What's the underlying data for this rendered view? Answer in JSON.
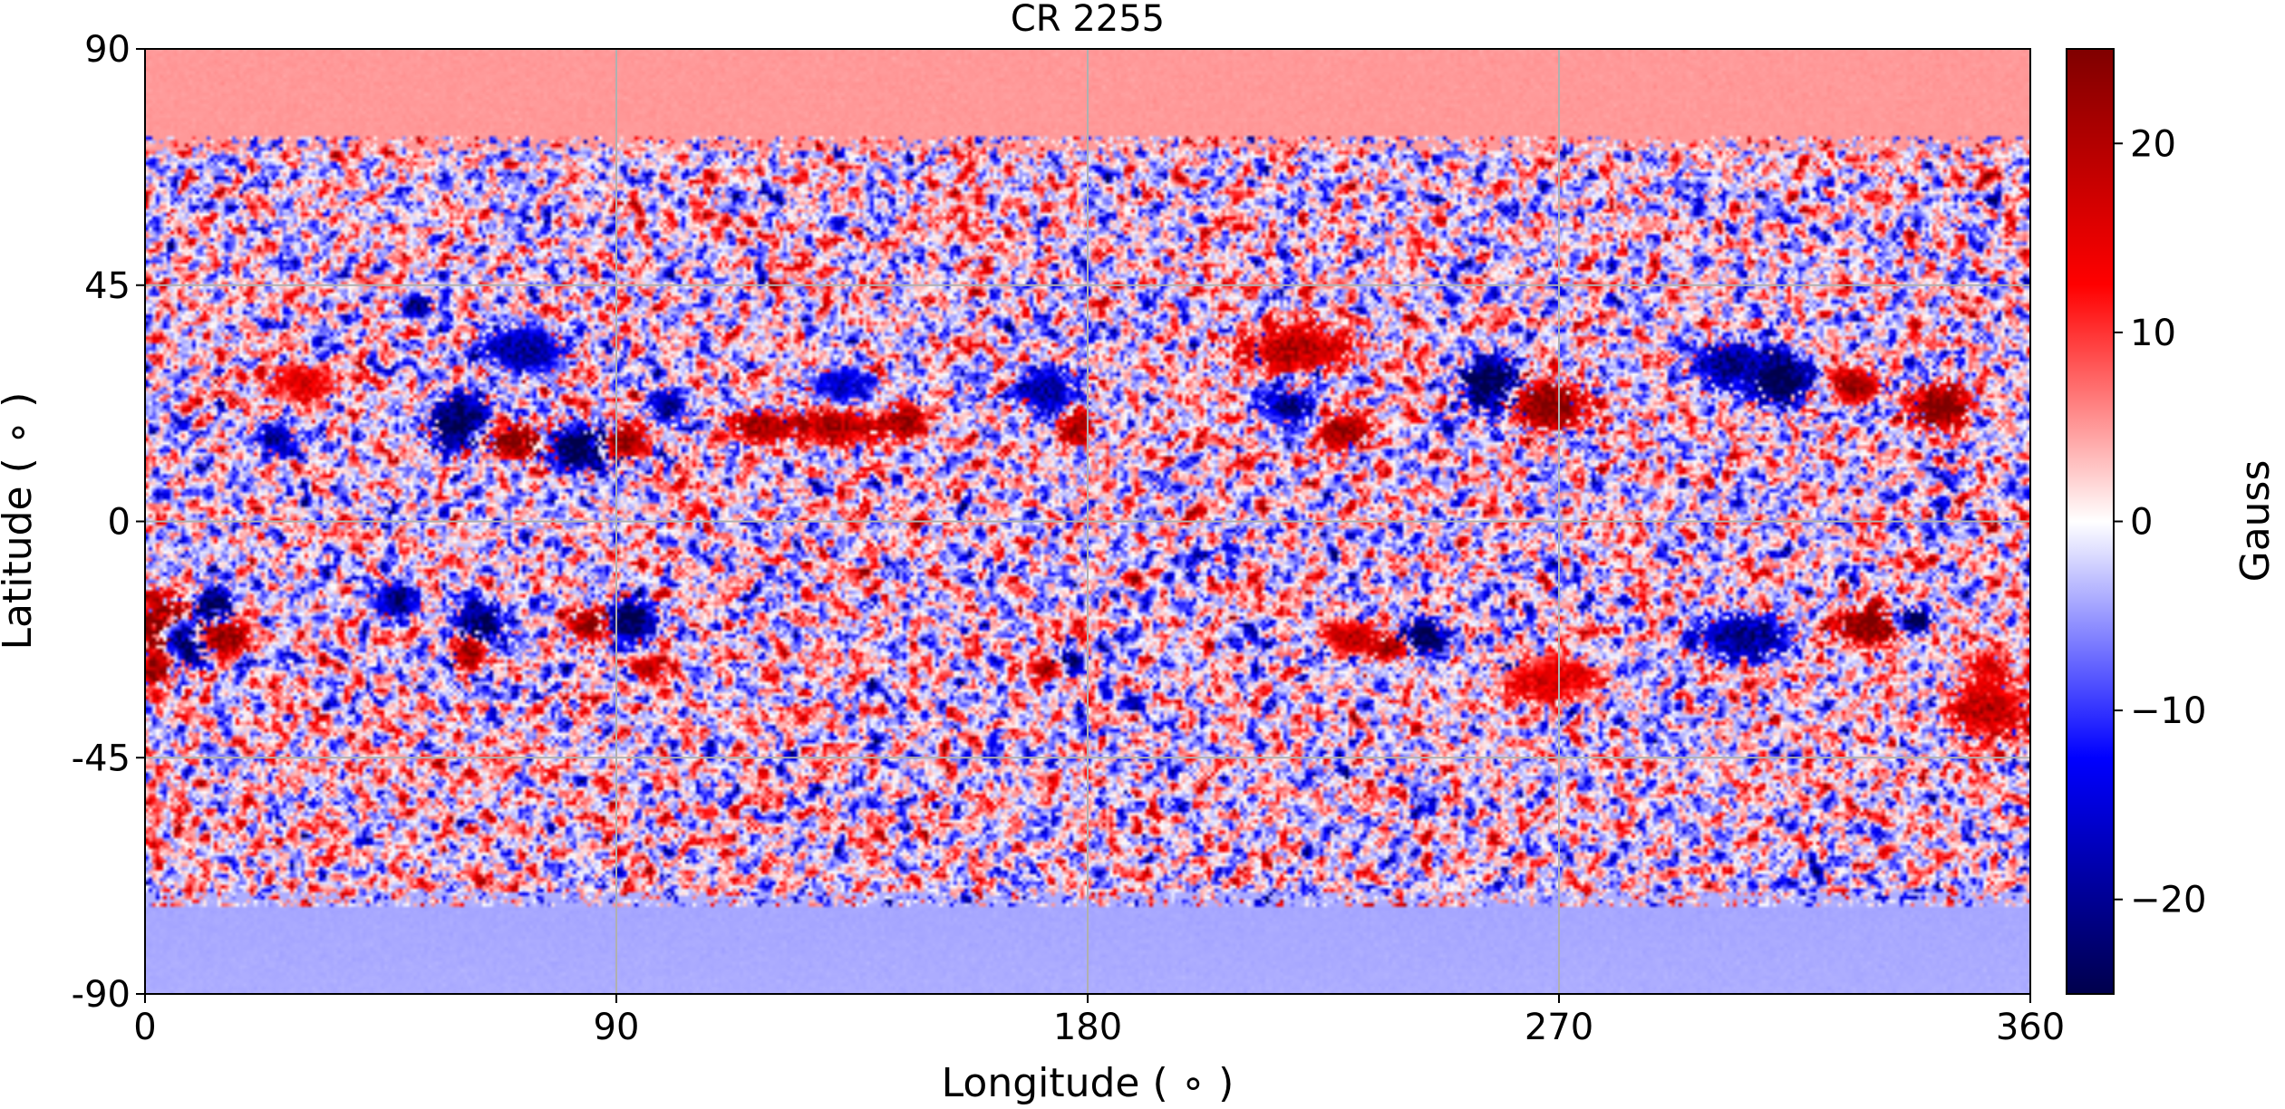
{
  "chart_data": {
    "type": "heatmap",
    "title": "CR 2255",
    "xlabel": "Longitude ($^\\circ$)",
    "ylabel": "Latitude ($^\\circ$)",
    "xlabel_display": "Longitude ( ∘ )",
    "ylabel_display": "Latitude ( ∘ )",
    "xlim": [
      0,
      360
    ],
    "ylim": [
      -90,
      90
    ],
    "xticks": [
      0,
      90,
      180,
      270,
      360
    ],
    "yticks": [
      90,
      45,
      0,
      -45,
      -90
    ],
    "xtick_labels": [
      "0",
      "90",
      "180",
      "270",
      "360"
    ],
    "ytick_labels": [
      "90",
      "45",
      "0",
      "-45",
      "-90"
    ],
    "grid": true,
    "colormap": "seismic",
    "colorbar": {
      "label": "Gauss",
      "range": [
        -25,
        25
      ],
      "ticks": [
        20,
        10,
        0,
        -10,
        -20
      ],
      "tick_labels": [
        "20",
        "10",
        "0",
        "−10",
        "−20"
      ],
      "colors": [
        "#00004c",
        "#0000ff",
        "#ffffff",
        "#ff0000",
        "#7f0000"
      ]
    },
    "polar_fill": {
      "north": {
        "lat_min": 72,
        "value": 5
      },
      "south": {
        "lat_max": -72,
        "value": -4
      }
    },
    "regions": [
      {
        "lon": 60,
        "lat": 19,
        "value": -25,
        "w": 5,
        "h": 5
      },
      {
        "lon": 72,
        "lat": 15,
        "value": 25,
        "w": 6,
        "h": 3
      },
      {
        "lon": 83,
        "lat": 14,
        "value": -25,
        "w": 6,
        "h": 4
      },
      {
        "lon": 92,
        "lat": 15,
        "value": 22,
        "w": 4,
        "h": 3
      },
      {
        "lon": 72,
        "lat": 33,
        "value": -18,
        "w": 8,
        "h": 4
      },
      {
        "lon": 100,
        "lat": 22,
        "value": -18,
        "w": 3,
        "h": 3
      },
      {
        "lon": 52,
        "lat": 41,
        "value": -20,
        "w": 3,
        "h": 2
      },
      {
        "lon": 25,
        "lat": 16,
        "value": -20,
        "w": 3,
        "h": 3
      },
      {
        "lon": 30,
        "lat": 26,
        "value": 15,
        "w": 6,
        "h": 3
      },
      {
        "lon": 118,
        "lat": 18,
        "value": 20,
        "w": 6,
        "h": 3
      },
      {
        "lon": 132,
        "lat": 18,
        "value": 20,
        "w": 8,
        "h": 3
      },
      {
        "lon": 145,
        "lat": 19,
        "value": 22,
        "w": 4,
        "h": 3
      },
      {
        "lon": 133,
        "lat": 26,
        "value": -16,
        "w": 6,
        "h": 3
      },
      {
        "lon": 178,
        "lat": 18,
        "value": 22,
        "w": 3,
        "h": 3
      },
      {
        "lon": 172,
        "lat": 25,
        "value": -18,
        "w": 5,
        "h": 4
      },
      {
        "lon": 220,
        "lat": 33,
        "value": 18,
        "w": 10,
        "h": 4
      },
      {
        "lon": 229,
        "lat": 17,
        "value": 22,
        "w": 4,
        "h": 3
      },
      {
        "lon": 218,
        "lat": 22,
        "value": -20,
        "w": 4,
        "h": 3
      },
      {
        "lon": 257,
        "lat": 26,
        "value": -25,
        "w": 5,
        "h": 5
      },
      {
        "lon": 268,
        "lat": 22,
        "value": 25,
        "w": 6,
        "h": 4
      },
      {
        "lon": 312,
        "lat": 27,
        "value": -25,
        "w": 5,
        "h": 5
      },
      {
        "lon": 302,
        "lat": 30,
        "value": -20,
        "w": 6,
        "h": 4
      },
      {
        "lon": 327,
        "lat": 26,
        "value": 20,
        "w": 4,
        "h": 3
      },
      {
        "lon": 343,
        "lat": 22,
        "value": 25,
        "w": 5,
        "h": 4
      },
      {
        "lon": 4,
        "lat": -20,
        "value": 25,
        "w": 5,
        "h": 5
      },
      {
        "lon": 8,
        "lat": -23,
        "value": -25,
        "w": 4,
        "h": 4
      },
      {
        "lon": 13,
        "lat": -16,
        "value": -25,
        "w": 3,
        "h": 3
      },
      {
        "lon": 15,
        "lat": -22,
        "value": 22,
        "w": 4,
        "h": 3
      },
      {
        "lon": 2,
        "lat": -28,
        "value": 22,
        "w": 3,
        "h": 3
      },
      {
        "lon": 48,
        "lat": -15,
        "value": -20,
        "w": 4,
        "h": 3
      },
      {
        "lon": 64,
        "lat": -20,
        "value": -25,
        "w": 4,
        "h": 4
      },
      {
        "lon": 62,
        "lat": -25,
        "value": 22,
        "w": 3,
        "h": 3
      },
      {
        "lon": 85,
        "lat": -20,
        "value": 22,
        "w": 4,
        "h": 3
      },
      {
        "lon": 93,
        "lat": -19,
        "value": -25,
        "w": 4,
        "h": 4
      },
      {
        "lon": 96,
        "lat": -28,
        "value": 18,
        "w": 3,
        "h": 2
      },
      {
        "lon": 176,
        "lat": -27,
        "value": -25,
        "w": 3,
        "h": 2
      },
      {
        "lon": 172,
        "lat": -28,
        "value": 20,
        "w": 3,
        "h": 2
      },
      {
        "lon": 230,
        "lat": -22,
        "value": 18,
        "w": 5,
        "h": 3
      },
      {
        "lon": 244,
        "lat": -22,
        "value": -25,
        "w": 4,
        "h": 3
      },
      {
        "lon": 238,
        "lat": -24,
        "value": 22,
        "w": 3,
        "h": 2
      },
      {
        "lon": 268,
        "lat": -30,
        "value": 15,
        "w": 8,
        "h": 4
      },
      {
        "lon": 305,
        "lat": -22,
        "value": -20,
        "w": 8,
        "h": 4
      },
      {
        "lon": 329,
        "lat": -20,
        "value": 25,
        "w": 5,
        "h": 3
      },
      {
        "lon": 338,
        "lat": -19,
        "value": -25,
        "w": 3,
        "h": 2
      },
      {
        "lon": 352,
        "lat": -36,
        "value": 18,
        "w": 7,
        "h": 5
      },
      {
        "lon": 352,
        "lat": -28,
        "value": 15,
        "w": 4,
        "h": 3
      }
    ]
  }
}
